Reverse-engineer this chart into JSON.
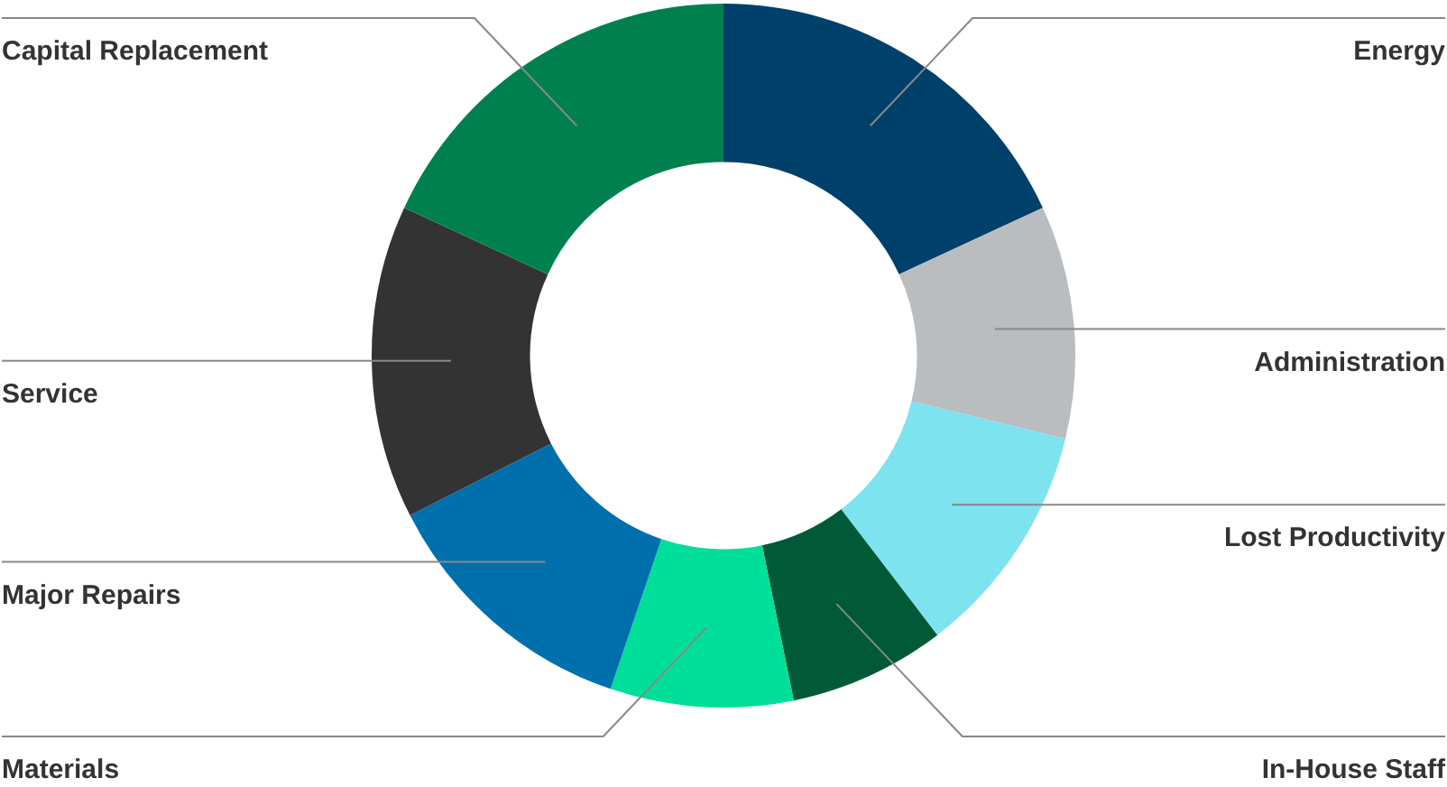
{
  "chart_data": {
    "type": "donut",
    "categories": [
      "Energy",
      "Administration",
      "Lost Productivity",
      "In-House Staff",
      "Materials",
      "Major Repairs",
      "Service",
      "Capital Replacement"
    ],
    "values": [
      18.1,
      10.7,
      10.8,
      7.2,
      8.4,
      12.3,
      14.4,
      18.1
    ],
    "colors": [
      "#00416b",
      "#b9bdbf",
      "#7de3ef",
      "#005a37",
      "#00df9a",
      "#0070ad",
      "#333333",
      "#00804f"
    ]
  }
}
